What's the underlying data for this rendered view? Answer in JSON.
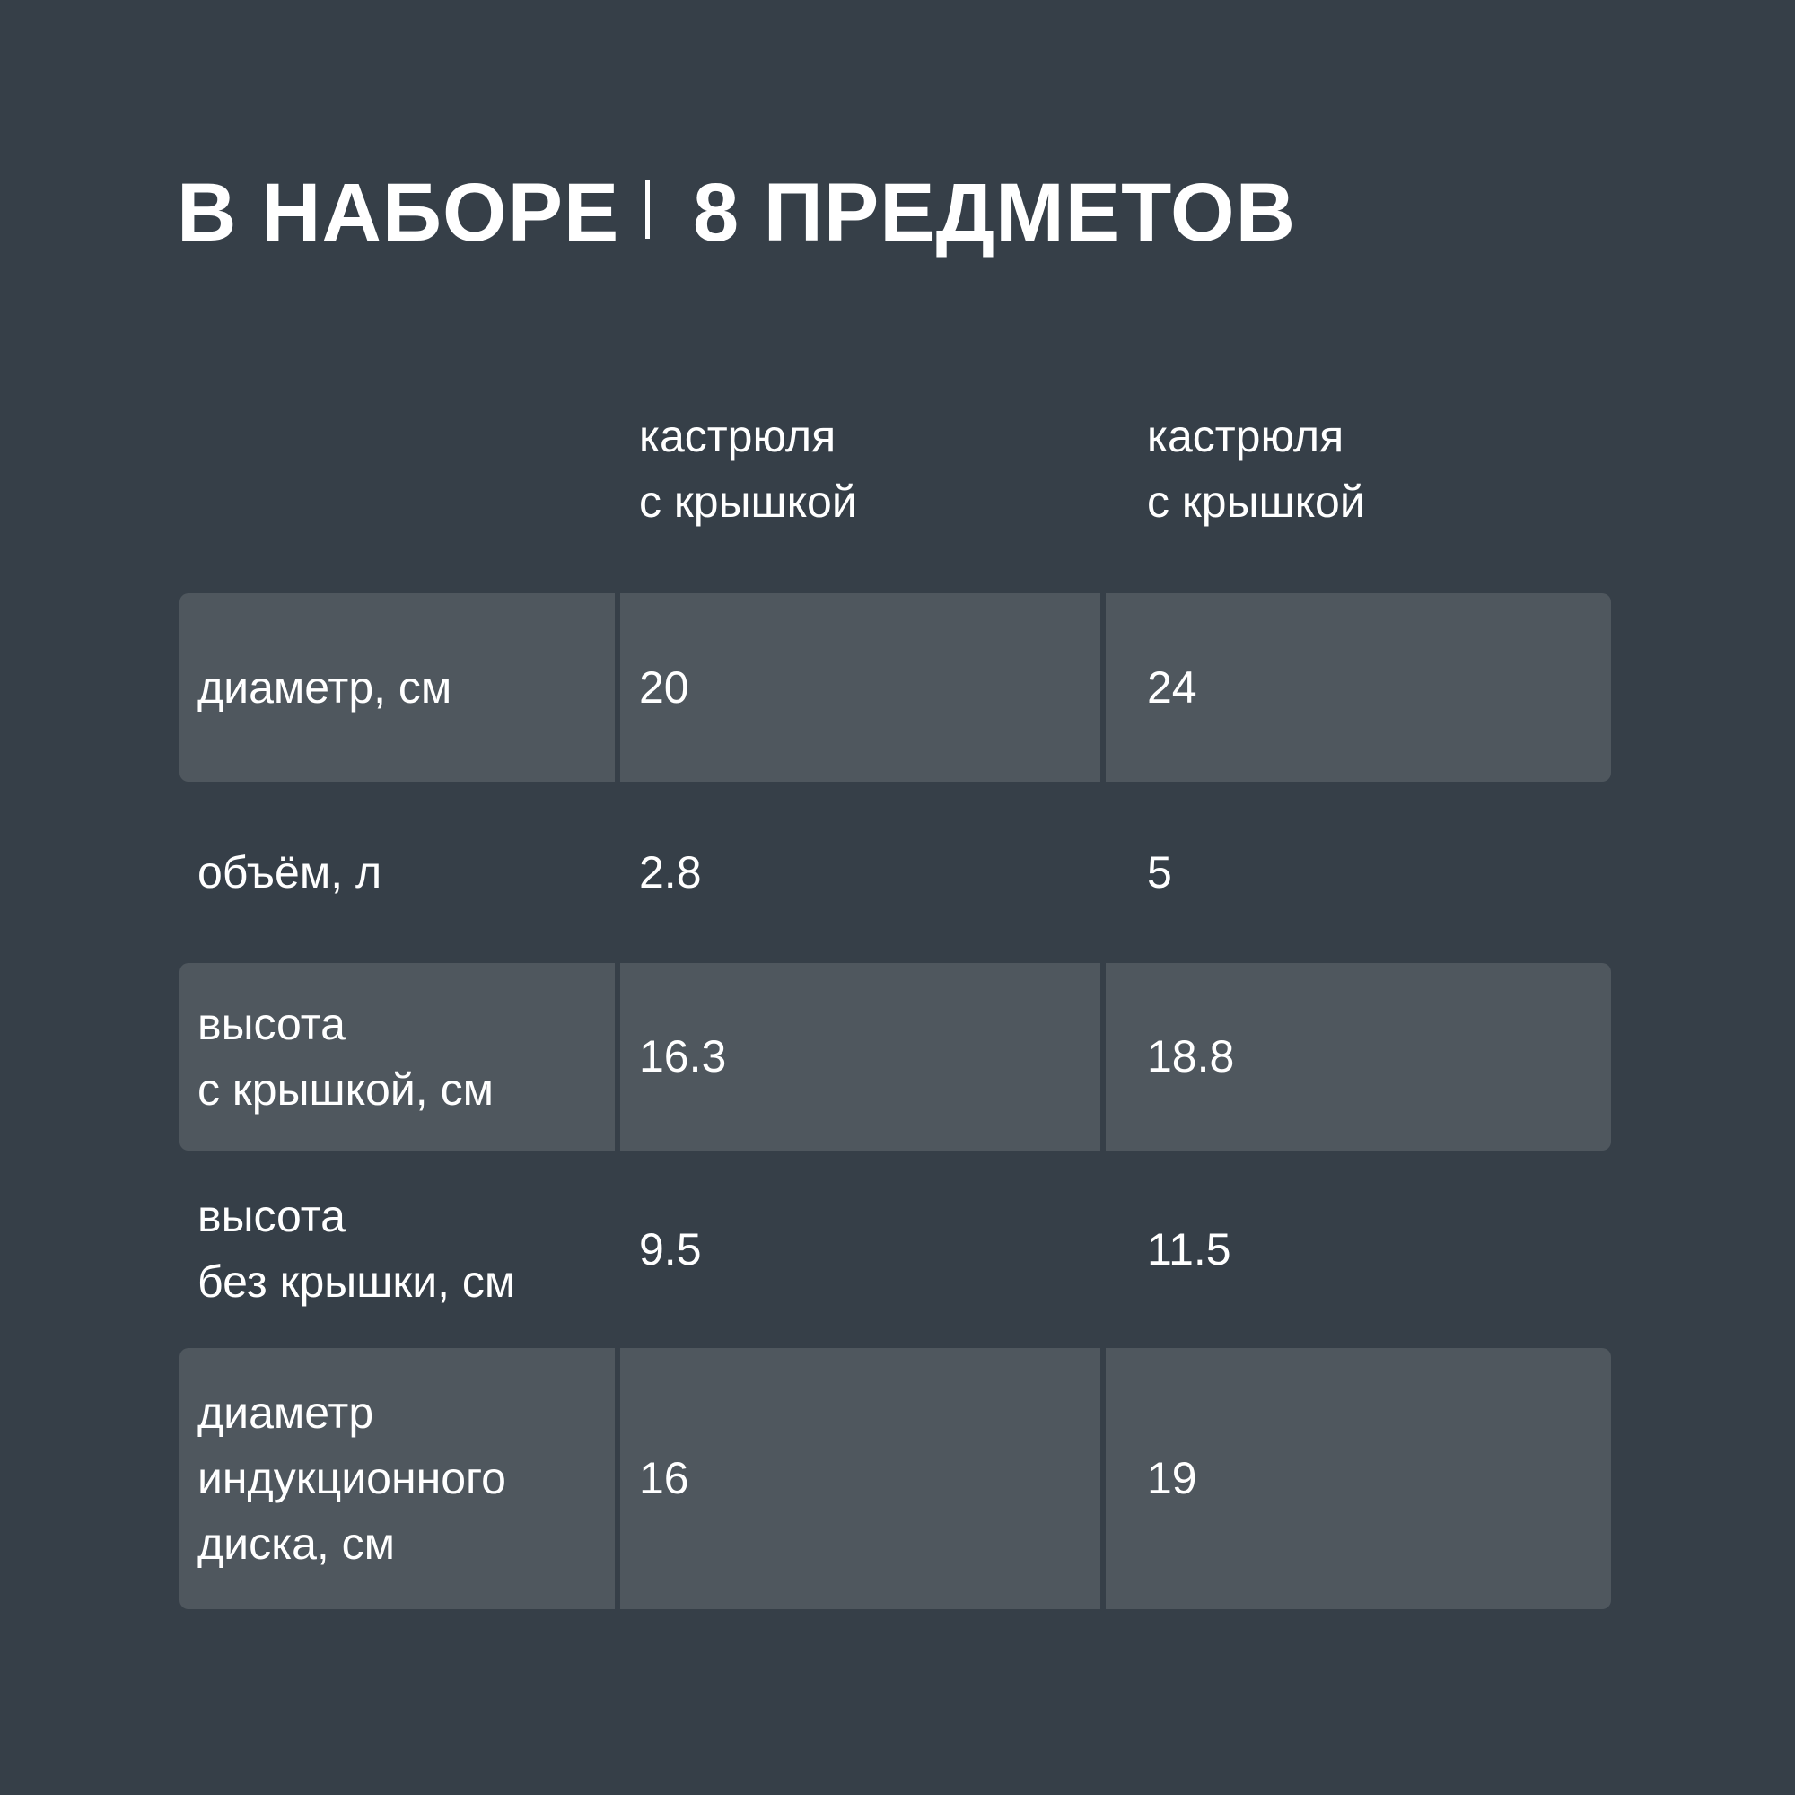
{
  "title": {
    "left": "В НАБОРЕ",
    "right": "8 ПРЕДМЕТОВ"
  },
  "columns": [
    {
      "line1": "кастрюля",
      "line2": "с крышкой"
    },
    {
      "line1": "кастрюля",
      "line2": "с крышкой"
    }
  ],
  "rows": [
    {
      "label": "диаметр, см",
      "values": [
        "20",
        "24"
      ],
      "shaded": true
    },
    {
      "label": "объём, л",
      "values": [
        "2.8",
        "5"
      ],
      "shaded": false
    },
    {
      "label": "высота\nс крышкой, см",
      "values": [
        "16.3",
        "18.8"
      ],
      "shaded": true
    },
    {
      "label": "высота\nбез крышки, см",
      "values": [
        "9.5",
        "11.5"
      ],
      "shaded": false
    },
    {
      "label": "диаметр\nиндукционного\nдиска, см",
      "values": [
        "16",
        "19"
      ],
      "shaded": true
    }
  ],
  "colors": {
    "background": "#363f48",
    "cell": "#4f575e",
    "text": "#ffffff"
  }
}
